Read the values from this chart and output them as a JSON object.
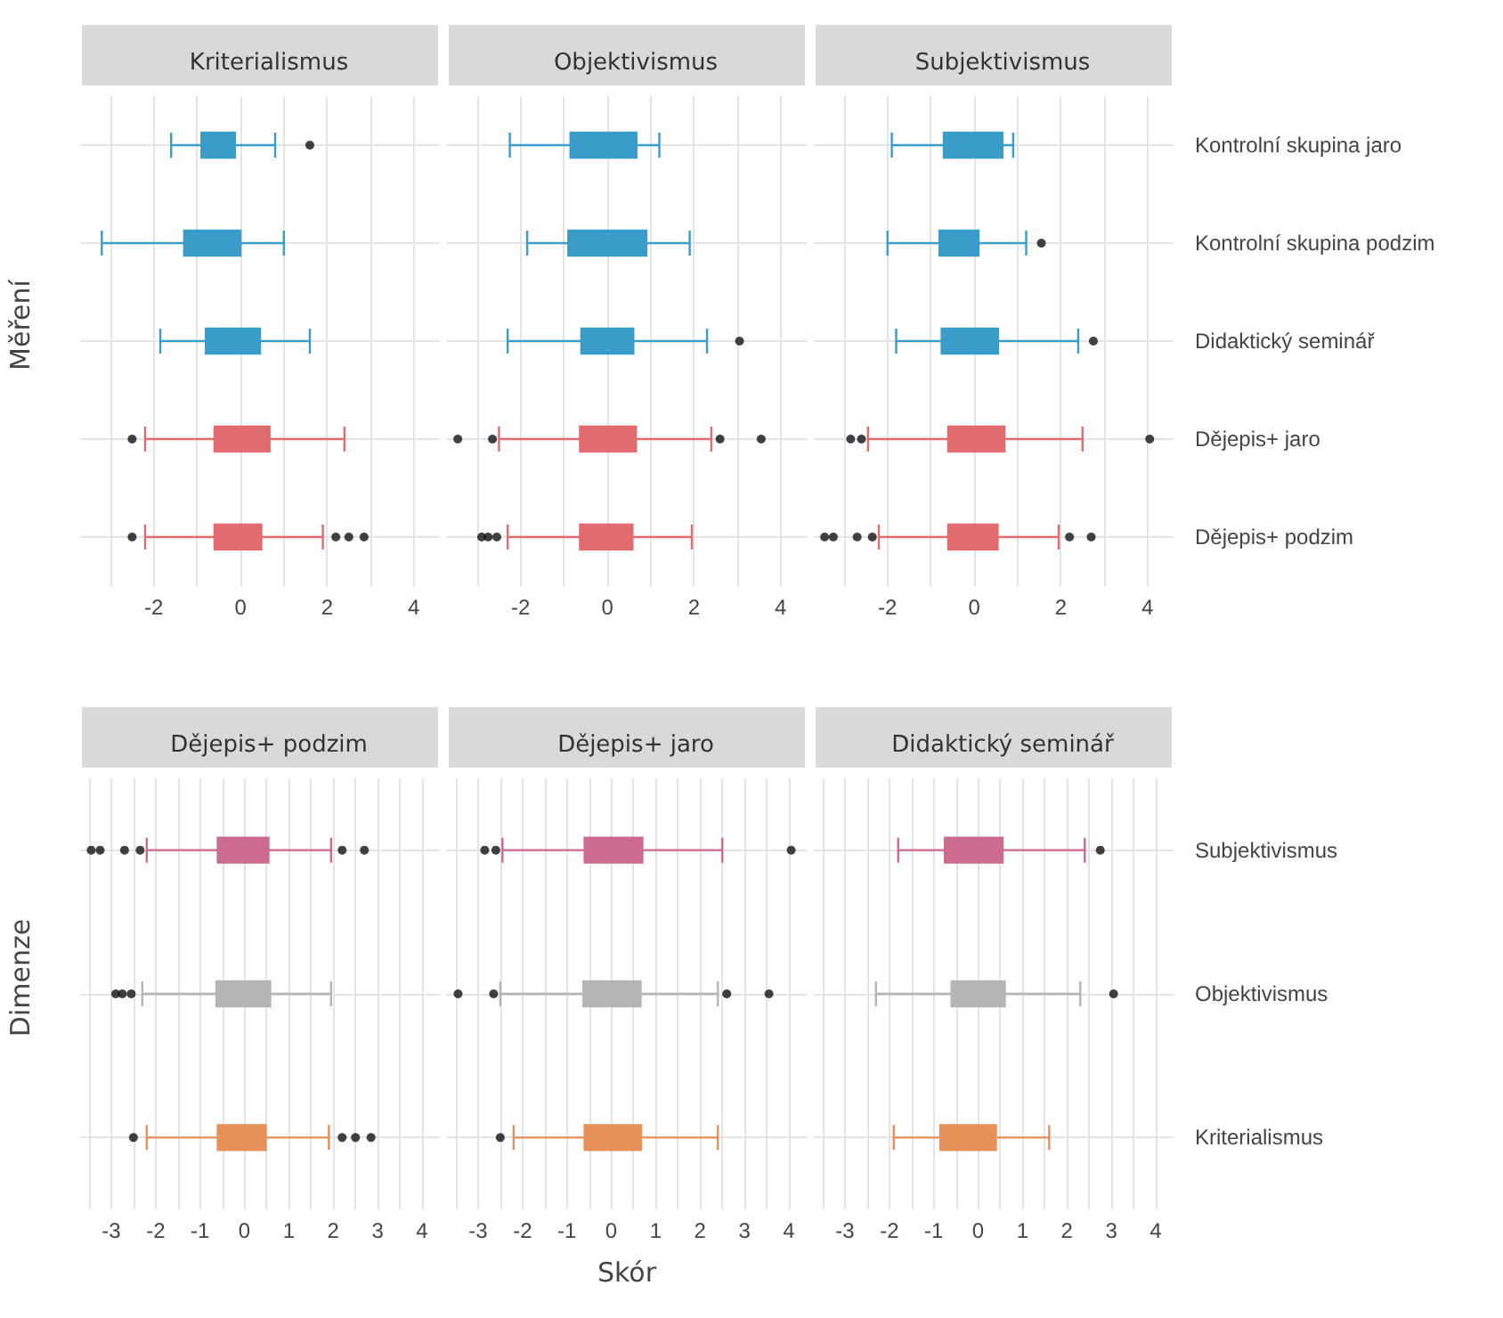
{
  "chart_data": [
    {
      "type": "box",
      "title": "Kriterialismus",
      "ylabel": "Měření",
      "orientation": "horizontal",
      "categories": [
        null,
        null,
        null,
        null,
        null
      ],
      "boxes": [
        {
          "low": -1.6,
          "q1": -0.9,
          "median": -0.3,
          "q3": -0.13,
          "high": 0.8,
          "outliers": [
            1.6
          ]
        },
        {
          "low": -3.2,
          "q1": -1.3,
          "median": -0.3,
          "q3": 0.0,
          "high": 1.0
        },
        {
          "low": -1.85,
          "q1": -0.8,
          "median": -0.3,
          "q3": 0.45,
          "high": 1.6
        },
        {
          "low": -2.2,
          "q1": -0.6,
          "median": 0.0,
          "q3": 0.67,
          "high": 2.4,
          "outliers": [
            -2.5
          ]
        },
        {
          "low": -2.2,
          "q1": -0.6,
          "median": -0.04,
          "q3": 0.48,
          "high": 1.9,
          "outliers": [
            -2.5,
            2.2,
            2.5,
            2.85
          ]
        }
      ],
      "colors": [
        "#3a9cc8",
        "#3a9cc8",
        "#3a9cc8",
        "#e06c70",
        "#e06c70"
      ],
      "xlim": [
        -3.7,
        4.6
      ],
      "xticks": [
        {
          "value": -3,
          "label": null
        },
        -2,
        {
          "value": -1,
          "label": null
        },
        0,
        {
          "value": 1,
          "label": null
        },
        2,
        {
          "value": 3,
          "label": null
        },
        4
      ],
      "grid": true,
      "tick_labels": "x"
    },
    {
      "type": "box",
      "title": "Objektivismus",
      "orientation": "horizontal",
      "categories": [
        null,
        null,
        null,
        null,
        null
      ],
      "boxes": [
        {
          "low": -2.25,
          "q1": -0.85,
          "median": 0.0,
          "q3": 0.67,
          "high": 1.2
        },
        {
          "low": -1.85,
          "q1": -0.9,
          "median": 0.0,
          "q3": 0.9,
          "high": 1.9
        },
        {
          "low": -2.3,
          "q1": -0.6,
          "median": -0.3,
          "q3": 0.6,
          "high": 2.3,
          "outliers": [
            3.05
          ]
        },
        {
          "low": -2.5,
          "q1": -0.63,
          "median": 0.07,
          "q3": 0.66,
          "high": 2.4,
          "outliers": [
            -3.45,
            -2.65,
            2.6,
            3.55
          ]
        },
        {
          "low": -2.3,
          "q1": -0.63,
          "median": 0.0,
          "q3": 0.58,
          "high": 1.95,
          "outliers": [
            -2.9,
            -2.75,
            -2.55
          ]
        }
      ],
      "colors": [
        "#3a9cc8",
        "#3a9cc8",
        "#3a9cc8",
        "#e06c70",
        "#e06c70"
      ],
      "xlim": [
        -3.7,
        4.6
      ],
      "xticks": [
        {
          "value": -3,
          "label": null
        },
        -2,
        {
          "value": -1,
          "label": null
        },
        0,
        {
          "value": 1,
          "label": null
        },
        2,
        {
          "value": 3,
          "label": null
        },
        4
      ],
      "grid": true,
      "tick_labels": "x"
    },
    {
      "type": "box",
      "title": "Subjektivismus",
      "orientation": "horizontal",
      "categories": [
        "Kontrolní skupina jaro",
        "Kontrolní skupina podzim",
        "Didaktický seminář",
        "Dějepis+ jaro",
        "Dějepis+ podzim"
      ],
      "boxes": [
        {
          "low": -1.9,
          "q1": -0.7,
          "median": -0.2,
          "q3": 0.65,
          "high": 0.9
        },
        {
          "low": -2.0,
          "q1": -0.8,
          "median": -0.45,
          "q3": 0.1,
          "high": 1.2,
          "outliers": [
            1.55
          ]
        },
        {
          "low": -1.8,
          "q1": -0.75,
          "median": -0.2,
          "q3": 0.55,
          "high": 2.4,
          "outliers": [
            2.75
          ]
        },
        {
          "low": -2.45,
          "q1": -0.6,
          "median": 0.0,
          "q3": 0.7,
          "high": 2.5,
          "outliers": [
            -2.85,
            -2.6,
            4.05
          ]
        },
        {
          "low": -2.2,
          "q1": -0.6,
          "median": 0.0,
          "q3": 0.54,
          "high": 1.95,
          "outliers": [
            -3.45,
            -3.25,
            -2.7,
            -2.35,
            2.2,
            2.7
          ]
        }
      ],
      "colors": [
        "#3a9cc8",
        "#3a9cc8",
        "#3a9cc8",
        "#e06c70",
        "#e06c70"
      ],
      "xlim": [
        -3.7,
        4.6
      ],
      "xticks": [
        {
          "value": -3,
          "label": null
        },
        -2,
        {
          "value": -1,
          "label": null
        },
        0,
        {
          "value": 1,
          "label": null
        },
        2,
        {
          "value": 3,
          "label": null
        },
        4
      ],
      "grid": true
    },
    {
      "type": "box",
      "title": "Dějepis+ podzim",
      "ylabel": "Dimenze",
      "orientation": "horizontal",
      "categories": [
        null,
        null,
        null
      ],
      "boxes": [
        {
          "low": -2.2,
          "q1": -0.6,
          "median": 0.0,
          "q3": 0.54,
          "high": 1.95,
          "outliers": [
            -3.45,
            -3.25,
            -2.7,
            -2.35,
            2.2,
            2.7
          ]
        },
        {
          "low": -2.3,
          "q1": -0.63,
          "median": 0.0,
          "q3": 0.58,
          "high": 1.95,
          "outliers": [
            -2.9,
            -2.75,
            -2.55
          ]
        },
        {
          "low": -2.2,
          "q1": -0.6,
          "median": -0.04,
          "q3": 0.48,
          "high": 1.9,
          "outliers": [
            -2.5,
            2.2,
            2.5,
            2.85
          ]
        }
      ],
      "colors": [
        "#cc6a8f",
        "#b5b5b5",
        "#e8905a"
      ],
      "xlim": [
        -3.7,
        4.4
      ],
      "xticks": [
        {
          "value": -3.5,
          "label": null
        },
        -3,
        {
          "value": -2.5,
          "label": null
        },
        -2,
        {
          "value": -1.5,
          "label": null
        },
        -1,
        {
          "value": -0.5,
          "label": null
        },
        0,
        {
          "value": 0.5,
          "label": null
        },
        1,
        {
          "value": 1.5,
          "label": null
        },
        2,
        {
          "value": 2.5,
          "label": null
        },
        3,
        {
          "value": 3.5,
          "label": null
        },
        4
      ],
      "grid": true,
      "tick_labels": "x"
    },
    {
      "type": "box",
      "title": "Dějepis+ jaro",
      "xlabel": "Skór",
      "orientation": "horizontal",
      "categories": [
        null,
        null,
        null
      ],
      "boxes": [
        {
          "low": -2.45,
          "q1": -0.6,
          "median": 0.0,
          "q3": 0.7,
          "high": 2.5,
          "outliers": [
            -2.85,
            -2.6,
            4.05
          ]
        },
        {
          "low": -2.5,
          "q1": -0.63,
          "median": 0.07,
          "q3": 0.66,
          "high": 2.4,
          "outliers": [
            -3.45,
            -2.65,
            2.6,
            3.55
          ]
        },
        {
          "low": -2.2,
          "q1": -0.6,
          "median": 0.0,
          "q3": 0.67,
          "high": 2.4,
          "outliers": [
            -2.5
          ]
        }
      ],
      "colors": [
        "#cc6a8f",
        "#b5b5b5",
        "#e8905a"
      ],
      "xlim": [
        -3.7,
        4.4
      ],
      "xticks": [
        {
          "value": -3.5,
          "label": null
        },
        -3,
        {
          "value": -2.5,
          "label": null
        },
        -2,
        {
          "value": -1.5,
          "label": null
        },
        -1,
        {
          "value": -0.5,
          "label": null
        },
        0,
        {
          "value": 0.5,
          "label": null
        },
        1,
        {
          "value": 1.5,
          "label": null
        },
        2,
        {
          "value": 2.5,
          "label": null
        },
        3,
        {
          "value": 3.5,
          "label": null
        },
        4
      ],
      "grid": true,
      "tick_labels": "x"
    },
    {
      "type": "box",
      "title": "Didaktický seminář",
      "orientation": "horizontal",
      "categories": [
        "Subjektivismus",
        "Objektivismus",
        "Kriterialismus"
      ],
      "boxes": [
        {
          "low": -1.8,
          "q1": -0.75,
          "median": -0.2,
          "q3": 0.55,
          "high": 2.4,
          "outliers": [
            2.75
          ]
        },
        {
          "low": -2.3,
          "q1": -0.6,
          "median": -0.3,
          "q3": 0.6,
          "high": 2.3,
          "outliers": [
            3.05
          ]
        },
        {
          "low": -1.9,
          "q1": -0.85,
          "median": -0.3,
          "q3": 0.4,
          "high": 1.6
        }
      ],
      "colors": [
        "#cc6a8f",
        "#b5b5b5",
        "#e8905a"
      ],
      "xlim": [
        -3.7,
        4.4
      ],
      "xticks": [
        {
          "value": -3.5,
          "label": null
        },
        -3,
        {
          "value": -2.5,
          "label": null
        },
        -2,
        {
          "value": -1.5,
          "label": null
        },
        -1,
        {
          "value": -0.5,
          "label": null
        },
        0,
        {
          "value": 0.5,
          "label": null
        },
        1,
        {
          "value": 1.5,
          "label": null
        },
        2,
        {
          "value": 2.5,
          "label": null
        },
        3,
        {
          "value": 3.5,
          "label": null
        },
        4
      ],
      "grid": true
    }
  ]
}
